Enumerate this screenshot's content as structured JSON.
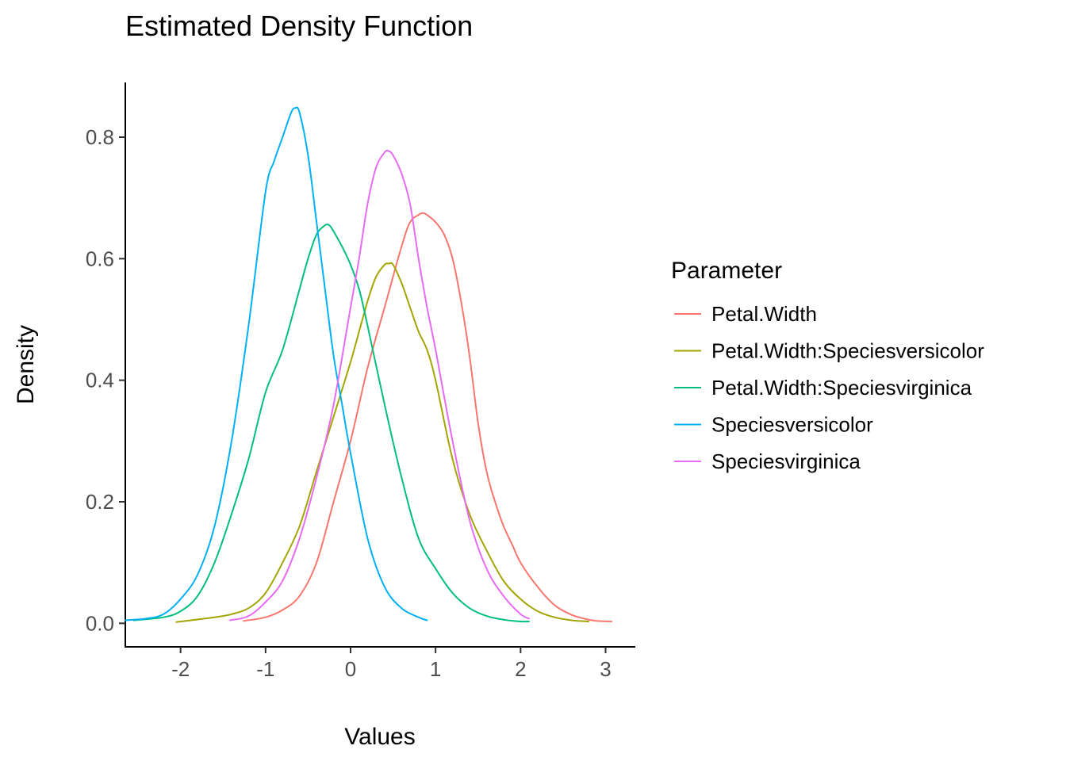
{
  "chart_data": {
    "type": "line",
    "title": "Estimated Density Function",
    "xlabel": "Values",
    "ylabel": "Density",
    "xlim": [
      -2.65,
      3.35
    ],
    "ylim": [
      -0.04,
      0.89
    ],
    "xticks": [
      -2,
      -1,
      0,
      1,
      2,
      3
    ],
    "xtick_labels": [
      "-2",
      "-1",
      "0",
      "1",
      "2",
      "3"
    ],
    "yticks": [
      0.0,
      0.2,
      0.4,
      0.6,
      0.8
    ],
    "ytick_labels": [
      "0.0",
      "0.2",
      "0.4",
      "0.6",
      "0.8"
    ],
    "grid": false,
    "legend": {
      "title": "Parameter",
      "position": "right"
    },
    "series": [
      {
        "name": "Petal.Width",
        "color": "#F8766D",
        "x": [
          -1.26,
          -1.0,
          -0.8,
          -0.6,
          -0.4,
          -0.2,
          0.0,
          0.2,
          0.4,
          0.6,
          0.7,
          0.8,
          0.85,
          0.9,
          1.0,
          1.1,
          1.2,
          1.3,
          1.4,
          1.5,
          1.6,
          1.7,
          1.8,
          1.9,
          2.0,
          2.2,
          2.4,
          2.6,
          2.8,
          2.9,
          3.07
        ],
        "y": [
          0.004,
          0.01,
          0.022,
          0.045,
          0.1,
          0.2,
          0.3,
          0.42,
          0.52,
          0.62,
          0.66,
          0.672,
          0.675,
          0.672,
          0.66,
          0.64,
          0.6,
          0.53,
          0.44,
          0.33,
          0.25,
          0.2,
          0.16,
          0.13,
          0.1,
          0.06,
          0.03,
          0.014,
          0.006,
          0.004,
          0.003
        ]
      },
      {
        "name": "Petal.Width:Speciesversicolor",
        "color": "#A3A500",
        "x": [
          -2.05,
          -1.6,
          -1.4,
          -1.2,
          -1.0,
          -0.8,
          -0.6,
          -0.4,
          -0.2,
          0.0,
          0.2,
          0.3,
          0.4,
          0.45,
          0.5,
          0.6,
          0.7,
          0.8,
          0.9,
          1.0,
          1.2,
          1.4,
          1.6,
          1.8,
          2.0,
          2.2,
          2.4,
          2.6,
          2.8
        ],
        "y": [
          0.002,
          0.01,
          0.015,
          0.025,
          0.05,
          0.1,
          0.16,
          0.25,
          0.34,
          0.43,
          0.53,
          0.57,
          0.59,
          0.592,
          0.59,
          0.56,
          0.52,
          0.48,
          0.45,
          0.4,
          0.27,
          0.18,
          0.12,
          0.07,
          0.04,
          0.02,
          0.01,
          0.005,
          0.003
        ]
      },
      {
        "name": "Petal.Width:Speciesvirginica",
        "color": "#00BF7D",
        "x": [
          -2.55,
          -2.2,
          -2.0,
          -1.8,
          -1.6,
          -1.4,
          -1.2,
          -1.0,
          -0.8,
          -0.6,
          -0.5,
          -0.4,
          -0.3,
          -0.25,
          -0.2,
          -0.1,
          0.0,
          0.1,
          0.2,
          0.4,
          0.6,
          0.8,
          1.0,
          1.2,
          1.4,
          1.6,
          1.8,
          2.0,
          2.1
        ],
        "y": [
          0.005,
          0.01,
          0.02,
          0.045,
          0.1,
          0.18,
          0.27,
          0.38,
          0.45,
          0.55,
          0.6,
          0.64,
          0.655,
          0.655,
          0.645,
          0.62,
          0.59,
          0.55,
          0.49,
          0.36,
          0.24,
          0.14,
          0.09,
          0.05,
          0.025,
          0.012,
          0.006,
          0.003,
          0.003
        ]
      },
      {
        "name": "Speciesversicolor",
        "color": "#00B0F6",
        "x": [
          -2.65,
          -2.4,
          -2.2,
          -2.0,
          -1.8,
          -1.6,
          -1.4,
          -1.2,
          -1.0,
          -0.9,
          -0.8,
          -0.7,
          -0.65,
          -0.6,
          -0.5,
          -0.4,
          -0.3,
          -0.2,
          -0.1,
          0.0,
          0.2,
          0.4,
          0.6,
          0.8,
          0.9
        ],
        "y": [
          0.005,
          0.008,
          0.015,
          0.04,
          0.08,
          0.16,
          0.3,
          0.49,
          0.71,
          0.76,
          0.8,
          0.84,
          0.848,
          0.84,
          0.77,
          0.66,
          0.55,
          0.44,
          0.36,
          0.28,
          0.14,
          0.06,
          0.025,
          0.01,
          0.005
        ]
      },
      {
        "name": "Speciesvirginica",
        "color": "#E76BF3",
        "x": [
          -1.42,
          -1.2,
          -1.0,
          -0.8,
          -0.6,
          -0.4,
          -0.2,
          0.0,
          0.1,
          0.2,
          0.3,
          0.4,
          0.45,
          0.5,
          0.6,
          0.7,
          0.8,
          0.9,
          1.0,
          1.2,
          1.4,
          1.6,
          1.8,
          2.0,
          2.1
        ],
        "y": [
          0.005,
          0.012,
          0.035,
          0.07,
          0.14,
          0.24,
          0.36,
          0.52,
          0.6,
          0.69,
          0.75,
          0.775,
          0.777,
          0.77,
          0.74,
          0.69,
          0.6,
          0.52,
          0.45,
          0.3,
          0.17,
          0.09,
          0.045,
          0.015,
          0.008
        ]
      }
    ]
  }
}
